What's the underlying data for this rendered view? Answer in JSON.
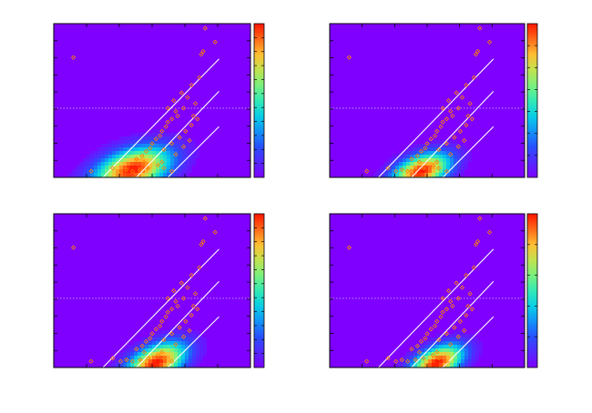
{
  "figure": {
    "background": "#ffffff",
    "plot_background": "#7f00ff",
    "frame_color": "#000000",
    "line_color": "#ffffff",
    "marker_color": "#ff8000",
    "reference_line_color": "#c8a0ff"
  },
  "chart_data": [
    {
      "type": "heatmap",
      "panel": "top-left",
      "title": "",
      "xlabel": "",
      "ylabel": "",
      "xlim": [
        0,
        1
      ],
      "ylim": [
        0,
        1
      ],
      "grid": false,
      "colormap": "rainbow",
      "colorbar": {
        "ticks": 11
      },
      "density_peak": {
        "x": 0.4,
        "y": 0.05,
        "sx": 0.12,
        "sy": 0.1
      },
      "reference_lines": [
        {
          "style": "dotted",
          "y": 0.45
        }
      ],
      "diagonal_lines": [
        {
          "x": [
            0.25,
            0.84
          ],
          "y": [
            0.0,
            0.77
          ]
        },
        {
          "x": [
            0.42,
            0.84
          ],
          "y": [
            0.0,
            0.56
          ]
        },
        {
          "x": [
            0.58,
            0.84
          ],
          "y": [
            0.0,
            0.33
          ]
        }
      ],
      "markers": [
        [
          0.77,
          0.97
        ],
        [
          0.82,
          0.88
        ],
        [
          0.1,
          0.78
        ],
        [
          0.75,
          0.8
        ],
        [
          0.76,
          0.82
        ],
        [
          0.74,
          0.65
        ],
        [
          0.7,
          0.6
        ],
        [
          0.68,
          0.52
        ],
        [
          0.72,
          0.48
        ],
        [
          0.66,
          0.45
        ],
        [
          0.62,
          0.43
        ],
        [
          0.63,
          0.4
        ],
        [
          0.6,
          0.38
        ],
        [
          0.58,
          0.36
        ],
        [
          0.57,
          0.33
        ],
        [
          0.55,
          0.3
        ],
        [
          0.54,
          0.27
        ],
        [
          0.52,
          0.25
        ],
        [
          0.5,
          0.22
        ],
        [
          0.49,
          0.19
        ],
        [
          0.47,
          0.17
        ],
        [
          0.45,
          0.14
        ],
        [
          0.56,
          0.18
        ],
        [
          0.6,
          0.22
        ],
        [
          0.64,
          0.26
        ],
        [
          0.67,
          0.3
        ],
        [
          0.7,
          0.34
        ],
        [
          0.71,
          0.4
        ],
        [
          0.58,
          0.45
        ],
        [
          0.61,
          0.5
        ],
        [
          0.65,
          0.55
        ],
        [
          0.55,
          0.1
        ],
        [
          0.53,
          0.08
        ],
        [
          0.48,
          0.06
        ],
        [
          0.44,
          0.05
        ],
        [
          0.4,
          0.04
        ],
        [
          0.37,
          0.05
        ],
        [
          0.34,
          0.04
        ],
        [
          0.3,
          0.06
        ],
        [
          0.46,
          0.1
        ],
        [
          0.42,
          0.12
        ],
        [
          0.56,
          0.06
        ],
        [
          0.6,
          0.04
        ],
        [
          0.19,
          0.04
        ],
        [
          0.62,
          0.15
        ],
        [
          0.66,
          0.2
        ],
        [
          0.69,
          0.24
        ],
        [
          0.73,
          0.38
        ]
      ]
    },
    {
      "type": "heatmap",
      "panel": "top-right",
      "title": "",
      "xlabel": "",
      "ylabel": "",
      "xlim": [
        0,
        1
      ],
      "ylim": [
        0,
        1
      ],
      "grid": false,
      "colormap": "rainbow",
      "colorbar": {
        "ticks": 7
      },
      "density_peak": {
        "x": 0.47,
        "y": 0.04,
        "sx": 0.09,
        "sy": 0.08
      },
      "reference_lines": [
        {
          "style": "dotted",
          "y": 0.45
        }
      ],
      "diagonal_lines": [
        {
          "x": [
            0.25,
            0.84
          ],
          "y": [
            0.0,
            0.77
          ]
        },
        {
          "x": [
            0.42,
            0.84
          ],
          "y": [
            0.0,
            0.56
          ]
        },
        {
          "x": [
            0.58,
            0.84
          ],
          "y": [
            0.0,
            0.33
          ]
        }
      ],
      "markers": [
        [
          0.77,
          0.97
        ],
        [
          0.82,
          0.88
        ],
        [
          0.1,
          0.78
        ],
        [
          0.75,
          0.8
        ],
        [
          0.76,
          0.82
        ],
        [
          0.74,
          0.65
        ],
        [
          0.7,
          0.6
        ],
        [
          0.68,
          0.52
        ],
        [
          0.72,
          0.48
        ],
        [
          0.66,
          0.45
        ],
        [
          0.62,
          0.43
        ],
        [
          0.63,
          0.4
        ],
        [
          0.6,
          0.38
        ],
        [
          0.58,
          0.36
        ],
        [
          0.57,
          0.33
        ],
        [
          0.55,
          0.3
        ],
        [
          0.54,
          0.27
        ],
        [
          0.52,
          0.25
        ],
        [
          0.5,
          0.22
        ],
        [
          0.49,
          0.19
        ],
        [
          0.47,
          0.17
        ],
        [
          0.45,
          0.14
        ],
        [
          0.56,
          0.18
        ],
        [
          0.6,
          0.22
        ],
        [
          0.64,
          0.26
        ],
        [
          0.67,
          0.3
        ],
        [
          0.7,
          0.34
        ],
        [
          0.71,
          0.4
        ],
        [
          0.58,
          0.45
        ],
        [
          0.61,
          0.5
        ],
        [
          0.65,
          0.55
        ],
        [
          0.55,
          0.1
        ],
        [
          0.53,
          0.08
        ],
        [
          0.48,
          0.06
        ],
        [
          0.44,
          0.05
        ],
        [
          0.4,
          0.04
        ],
        [
          0.37,
          0.05
        ],
        [
          0.34,
          0.04
        ],
        [
          0.3,
          0.06
        ],
        [
          0.46,
          0.1
        ],
        [
          0.42,
          0.12
        ],
        [
          0.56,
          0.06
        ],
        [
          0.6,
          0.04
        ],
        [
          0.19,
          0.04
        ],
        [
          0.62,
          0.15
        ],
        [
          0.66,
          0.2
        ],
        [
          0.69,
          0.24
        ],
        [
          0.73,
          0.38
        ]
      ]
    },
    {
      "type": "heatmap",
      "panel": "bottom-left",
      "title": "",
      "xlabel": "",
      "ylabel": "",
      "xlim": [
        0,
        1
      ],
      "ylim": [
        0,
        1
      ],
      "grid": false,
      "colormap": "rainbow",
      "colorbar": {
        "ticks": 11
      },
      "density_peak": {
        "x": 0.52,
        "y": 0.03,
        "sx": 0.09,
        "sy": 0.09
      },
      "reference_lines": [
        {
          "style": "dotted",
          "y": 0.45
        }
      ],
      "diagonal_lines": [
        {
          "x": [
            0.25,
            0.84
          ],
          "y": [
            0.0,
            0.77
          ]
        },
        {
          "x": [
            0.42,
            0.84
          ],
          "y": [
            0.0,
            0.56
          ]
        },
        {
          "x": [
            0.58,
            0.84
          ],
          "y": [
            0.0,
            0.33
          ]
        }
      ],
      "markers": [
        [
          0.77,
          0.97
        ],
        [
          0.82,
          0.88
        ],
        [
          0.1,
          0.78
        ],
        [
          0.75,
          0.8
        ],
        [
          0.76,
          0.82
        ],
        [
          0.74,
          0.65
        ],
        [
          0.7,
          0.6
        ],
        [
          0.68,
          0.52
        ],
        [
          0.72,
          0.48
        ],
        [
          0.66,
          0.45
        ],
        [
          0.62,
          0.43
        ],
        [
          0.63,
          0.4
        ],
        [
          0.6,
          0.38
        ],
        [
          0.58,
          0.36
        ],
        [
          0.57,
          0.33
        ],
        [
          0.55,
          0.3
        ],
        [
          0.54,
          0.27
        ],
        [
          0.52,
          0.25
        ],
        [
          0.5,
          0.22
        ],
        [
          0.49,
          0.19
        ],
        [
          0.47,
          0.17
        ],
        [
          0.45,
          0.14
        ],
        [
          0.56,
          0.18
        ],
        [
          0.6,
          0.22
        ],
        [
          0.64,
          0.26
        ],
        [
          0.67,
          0.3
        ],
        [
          0.7,
          0.34
        ],
        [
          0.71,
          0.4
        ],
        [
          0.58,
          0.45
        ],
        [
          0.61,
          0.5
        ],
        [
          0.65,
          0.55
        ],
        [
          0.55,
          0.1
        ],
        [
          0.53,
          0.08
        ],
        [
          0.48,
          0.06
        ],
        [
          0.44,
          0.05
        ],
        [
          0.4,
          0.04
        ],
        [
          0.37,
          0.05
        ],
        [
          0.34,
          0.04
        ],
        [
          0.3,
          0.06
        ],
        [
          0.46,
          0.1
        ],
        [
          0.42,
          0.12
        ],
        [
          0.56,
          0.06
        ],
        [
          0.6,
          0.04
        ],
        [
          0.19,
          0.04
        ],
        [
          0.62,
          0.15
        ],
        [
          0.66,
          0.2
        ],
        [
          0.69,
          0.24
        ],
        [
          0.73,
          0.38
        ]
      ]
    },
    {
      "type": "heatmap",
      "panel": "bottom-right",
      "title": "",
      "xlabel": "",
      "ylabel": "",
      "xlim": [
        0,
        1
      ],
      "ylim": [
        0,
        1
      ],
      "grid": false,
      "colormap": "rainbow",
      "colorbar": {
        "ticks": 5
      },
      "density_peak": {
        "x": 0.55,
        "y": 0.03,
        "sx": 0.08,
        "sy": 0.08
      },
      "reference_lines": [
        {
          "style": "dotted",
          "y": 0.45
        }
      ],
      "diagonal_lines": [
        {
          "x": [
            0.25,
            0.84
          ],
          "y": [
            0.0,
            0.77
          ]
        },
        {
          "x": [
            0.42,
            0.84
          ],
          "y": [
            0.0,
            0.56
          ]
        },
        {
          "x": [
            0.58,
            0.84
          ],
          "y": [
            0.0,
            0.33
          ]
        }
      ],
      "markers": [
        [
          0.77,
          0.97
        ],
        [
          0.82,
          0.88
        ],
        [
          0.1,
          0.78
        ],
        [
          0.75,
          0.8
        ],
        [
          0.76,
          0.82
        ],
        [
          0.74,
          0.65
        ],
        [
          0.7,
          0.6
        ],
        [
          0.68,
          0.52
        ],
        [
          0.72,
          0.48
        ],
        [
          0.66,
          0.45
        ],
        [
          0.62,
          0.43
        ],
        [
          0.63,
          0.4
        ],
        [
          0.6,
          0.38
        ],
        [
          0.58,
          0.36
        ],
        [
          0.57,
          0.33
        ],
        [
          0.55,
          0.3
        ],
        [
          0.54,
          0.27
        ],
        [
          0.52,
          0.25
        ],
        [
          0.5,
          0.22
        ],
        [
          0.49,
          0.19
        ],
        [
          0.47,
          0.17
        ],
        [
          0.45,
          0.14
        ],
        [
          0.56,
          0.18
        ],
        [
          0.6,
          0.22
        ],
        [
          0.64,
          0.26
        ],
        [
          0.67,
          0.3
        ],
        [
          0.7,
          0.34
        ],
        [
          0.71,
          0.4
        ],
        [
          0.58,
          0.45
        ],
        [
          0.61,
          0.5
        ],
        [
          0.65,
          0.55
        ],
        [
          0.55,
          0.1
        ],
        [
          0.53,
          0.08
        ],
        [
          0.48,
          0.06
        ],
        [
          0.44,
          0.05
        ],
        [
          0.4,
          0.04
        ],
        [
          0.37,
          0.05
        ],
        [
          0.34,
          0.04
        ],
        [
          0.3,
          0.06
        ],
        [
          0.46,
          0.1
        ],
        [
          0.42,
          0.12
        ],
        [
          0.56,
          0.06
        ],
        [
          0.6,
          0.04
        ],
        [
          0.19,
          0.04
        ],
        [
          0.62,
          0.15
        ],
        [
          0.66,
          0.2
        ],
        [
          0.69,
          0.24
        ],
        [
          0.73,
          0.38
        ]
      ]
    }
  ]
}
